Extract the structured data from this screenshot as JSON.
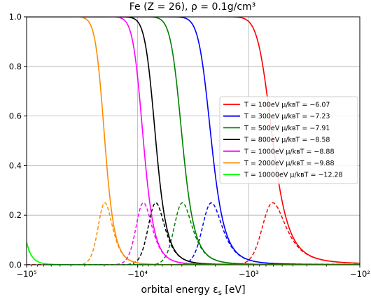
{
  "chart_data": {
    "type": "line",
    "title": "Fe (Z = 26),   ρ = 0.1g/cm³",
    "xlabel": "orbital energy ε",
    "xlabel_sub": "s",
    "xlabel_unit": " [eV]",
    "xscale": "symlog-negative",
    "xlim": [
      -100000,
      -100
    ],
    "ylim": [
      0,
      1.0
    ],
    "x_major_ticks": [
      -100000,
      -10000,
      -1000,
      -100
    ],
    "x_tick_labels": [
      "−10⁵",
      "−10⁴",
      "−10³",
      "−10²"
    ],
    "y_ticks": [
      0.0,
      0.2,
      0.4,
      0.6,
      0.8,
      1.0
    ],
    "y_tick_labels": [
      "0.0",
      "0.2",
      "0.4",
      "0.6",
      "0.8",
      "1.0"
    ],
    "grid": true,
    "legend_position": "center-right",
    "solid_curve": "occupation (Fermi–Dirac)",
    "dashed_curve": "derivative peak, height 0.25",
    "series": [
      {
        "name": "T = 100eV  μ/k_BT = −6.07",
        "label_T": "T = 100eV",
        "label_mu": " μ/kʙT = −6.07",
        "color": "#ff0000",
        "T": 100,
        "mu_over_kT": -6.07
      },
      {
        "name": "T = 300eV  μ/k_BT = −7.23",
        "label_T": "T = 300eV",
        "label_mu": " μ/kʙT = −7.23",
        "color": "#0000ff",
        "T": 300,
        "mu_over_kT": -7.23
      },
      {
        "name": "T = 500eV  μ/k_BT = −7.91",
        "label_T": "T = 500eV",
        "label_mu": " μ/kʙT = −7.91",
        "color": "#008000",
        "T": 500,
        "mu_over_kT": -7.91
      },
      {
        "name": "T = 800eV  μ/k_BT = −8.58",
        "label_T": "T = 800eV",
        "label_mu": " μ/kʙT = −8.58",
        "color": "#000000",
        "T": 800,
        "mu_over_kT": -8.58
      },
      {
        "name": "T = 1000eV  μ/k_BT = −8.88",
        "label_T": "T = 1000eV",
        "label_mu": " μ/kʙT = −8.88",
        "color": "#ff00ff",
        "T": 1000,
        "mu_over_kT": -8.88
      },
      {
        "name": "T = 2000eV  μ/k_BT = −9.88",
        "label_T": "T = 2000eV",
        "label_mu": " μ/kʙT = −9.88",
        "color": "#ff8c00",
        "T": 2000,
        "mu_over_kT": -9.88
      },
      {
        "name": "T = 10000eV  μ/k_BT = −12.28",
        "label_T": "T = 10000eV",
        "label_mu": " μ/kʙT = −12.28",
        "color": "#00ff00",
        "T": 10000,
        "mu_over_kT": -12.28
      }
    ]
  }
}
